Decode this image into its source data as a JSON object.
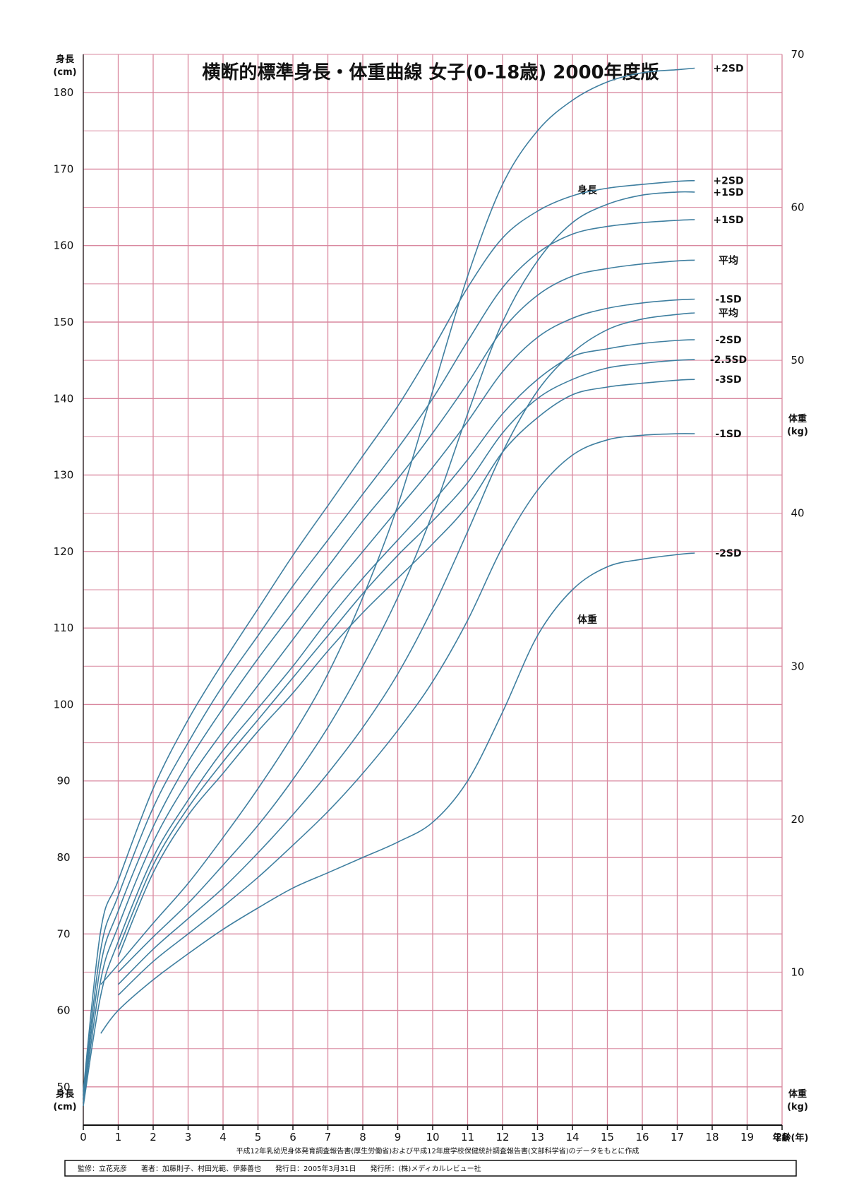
{
  "chart_data": {
    "type": "line",
    "title": "横断的標準身長・体重曲線 女子(0-18歳) 2000年度版",
    "left_axis_label_top": [
      "身長",
      "(cm)"
    ],
    "left_axis_label_bottom": [
      "身長",
      "(cm)"
    ],
    "right_axis_label_top": [
      "体重",
      "(kg)"
    ],
    "right_axis_label_bottom": [
      "体重",
      "(kg)"
    ],
    "x_axis_label": "年齢(年)",
    "xlim": [
      0,
      20
    ],
    "x_ticks": [
      "0",
      "1",
      "2",
      "3",
      "4",
      "5",
      "6",
      "7",
      "8",
      "9",
      "10",
      "11",
      "12",
      "13",
      "14",
      "15",
      "16",
      "17",
      "18",
      "19",
      "20"
    ],
    "height_ylim": [
      45,
      185
    ],
    "height_ticks": [
      "50",
      "60",
      "70",
      "80",
      "90",
      "100",
      "110",
      "120",
      "130",
      "140",
      "150",
      "160",
      "170",
      "180"
    ],
    "weight_ylim": [
      0,
      80
    ],
    "weight_ticks": [
      "10",
      "20",
      "30",
      "40",
      "50",
      "60",
      "70",
      "80"
    ],
    "height_group_label": "身長",
    "weight_group_label": "体重",
    "height_series": [
      {
        "name": "+2SD",
        "x": [
          0,
          0.5,
          1,
          2,
          3,
          4,
          5,
          6,
          7,
          8,
          9,
          10,
          11,
          12,
          13,
          14,
          15,
          16,
          17,
          17.5
        ],
        "values": [
          49.5,
          70.5,
          77,
          89,
          98,
          105.5,
          112.5,
          119.5,
          126,
          132.5,
          139,
          146.5,
          154.5,
          161,
          164.5,
          166.5,
          167.5,
          168,
          168.4,
          168.5
        ]
      },
      {
        "name": "+1SD",
        "x": [
          0,
          0.5,
          1,
          2,
          3,
          4,
          5,
          6,
          7,
          8,
          9,
          10,
          11,
          12,
          13,
          14,
          15,
          16,
          17,
          17.5
        ],
        "values": [
          49,
          68,
          75,
          86.5,
          95,
          102.5,
          109,
          115.5,
          121.5,
          127.5,
          133.5,
          140,
          147.5,
          154.5,
          159,
          161.5,
          162.5,
          163,
          163.3,
          163.4
        ]
      },
      {
        "name": "平均",
        "x": [
          0,
          0.5,
          1,
          2,
          3,
          4,
          5,
          6,
          7,
          8,
          9,
          10,
          11,
          12,
          13,
          14,
          15,
          16,
          17,
          17.5
        ],
        "values": [
          48.5,
          66,
          73,
          84,
          92.5,
          99.5,
          106,
          112,
          118,
          124,
          129.5,
          135.5,
          142,
          149,
          153.5,
          156,
          157,
          157.6,
          158,
          158.1
        ]
      },
      {
        "name": "-1SD",
        "x": [
          0,
          0.5,
          1,
          2,
          3,
          4,
          5,
          6,
          7,
          8,
          9,
          10,
          11,
          12,
          13,
          14,
          15,
          16,
          17,
          17.5
        ],
        "values": [
          48,
          64,
          71,
          82,
          90,
          96.5,
          102.5,
          108.5,
          114.5,
          120,
          125.5,
          131,
          137,
          143.5,
          148,
          150.5,
          151.8,
          152.5,
          152.9,
          153
        ]
      },
      {
        "name": "-2SD",
        "x": [
          0,
          0.5,
          1,
          2,
          3,
          4,
          5,
          6,
          7,
          8,
          9,
          10,
          11,
          12,
          13,
          14,
          15,
          16,
          17,
          17.5
        ],
        "values": [
          47.5,
          62,
          69,
          80,
          87.5,
          94,
          99.5,
          105,
          111,
          116.5,
          121.5,
          126.5,
          132,
          138,
          142.5,
          145.5,
          146.5,
          147.2,
          147.6,
          147.7
        ]
      },
      {
        "name": "-2.5SD",
        "x": [
          1,
          2,
          3,
          4,
          5,
          6,
          7,
          8,
          9,
          10,
          11,
          12,
          13,
          14,
          15,
          16,
          17,
          17.5
        ],
        "values": [
          68,
          79,
          86.5,
          92.5,
          98,
          103.5,
          109,
          114.5,
          119.5,
          124,
          129,
          135.5,
          140,
          142.5,
          144,
          144.6,
          145,
          145.1
        ]
      },
      {
        "name": "-3SD",
        "x": [
          1,
          2,
          3,
          4,
          5,
          6,
          7,
          8,
          9,
          10,
          11,
          12,
          13,
          14,
          15,
          16,
          17,
          17.5
        ],
        "values": [
          67,
          78,
          85.5,
          91,
          96.5,
          101.5,
          107,
          112,
          116.5,
          121,
          126,
          133,
          137.5,
          140.5,
          141.5,
          142,
          142.4,
          142.5
        ]
      }
    ],
    "weight_series": [
      {
        "name": "+2SD",
        "x": [
          0.5,
          1,
          2,
          3,
          4,
          5,
          6,
          7,
          8,
          9,
          10,
          11,
          12,
          13,
          14,
          15,
          16,
          17,
          17.5
        ],
        "values": [
          9.2,
          10.5,
          13.2,
          15.8,
          18.8,
          22,
          25.5,
          29.5,
          34.5,
          40.5,
          48,
          55.5,
          61.5,
          65,
          67,
          68.2,
          68.8,
          69,
          69.1
        ]
      },
      {
        "name": "+1SD",
        "x": [
          1,
          2,
          3,
          4,
          5,
          6,
          7,
          8,
          9,
          10,
          11,
          12,
          13,
          14,
          15,
          16,
          17,
          17.5
        ],
        "values": [
          10,
          12.3,
          14.5,
          17,
          19.6,
          22.6,
          26,
          30,
          34.5,
          40,
          46.5,
          52.5,
          56.5,
          59,
          60.2,
          60.8,
          61,
          61
        ]
      },
      {
        "name": "平均",
        "x": [
          1,
          2,
          3,
          4,
          5,
          6,
          7,
          8,
          9,
          10,
          11,
          12,
          13,
          14,
          15,
          16,
          17,
          17.5
        ],
        "values": [
          9.2,
          11.5,
          13.5,
          15.5,
          17.8,
          20.3,
          23,
          26,
          29.5,
          33.8,
          38.8,
          44,
          48,
          50.5,
          52,
          52.7,
          53,
          53.1
        ]
      },
      {
        "name": "-1SD",
        "x": [
          1,
          2,
          3,
          4,
          5,
          6,
          7,
          8,
          9,
          10,
          11,
          12,
          13,
          14,
          15,
          16,
          17,
          17.5
        ],
        "values": [
          8.5,
          10.7,
          12.5,
          14.3,
          16.2,
          18.3,
          20.5,
          23,
          25.8,
          29,
          33,
          37.8,
          41.5,
          43.8,
          44.8,
          45.1,
          45.2,
          45.2
        ]
      },
      {
        "name": "-2SD",
        "x": [
          0.5,
          1,
          2,
          3,
          4,
          5,
          6,
          7,
          8,
          9,
          10,
          11,
          12,
          13,
          14,
          15,
          16,
          17,
          17.5
        ],
        "values": [
          6,
          7.5,
          9.5,
          11.2,
          12.8,
          14.2,
          15.5,
          16.5,
          17.5,
          18.5,
          19.8,
          22.5,
          27,
          32,
          35,
          36.5,
          37,
          37.3,
          37.4
        ]
      }
    ]
  },
  "footer": {
    "source_note": "平成12年乳幼児身体発育調査報告書(厚生労働省)および平成12年度学校保健統計調査報告書(文部科学省)のデータをもとに作成",
    "credits": "監修：立花克彦　　著者：加藤則子、村田光範、伊藤善也　　発行日：2005年3月31日　　発行所：(株)メディカルレビュー社"
  },
  "colors": {
    "grid": "#d9889f",
    "curve": "#3f7fa0",
    "axis": "#111111"
  }
}
